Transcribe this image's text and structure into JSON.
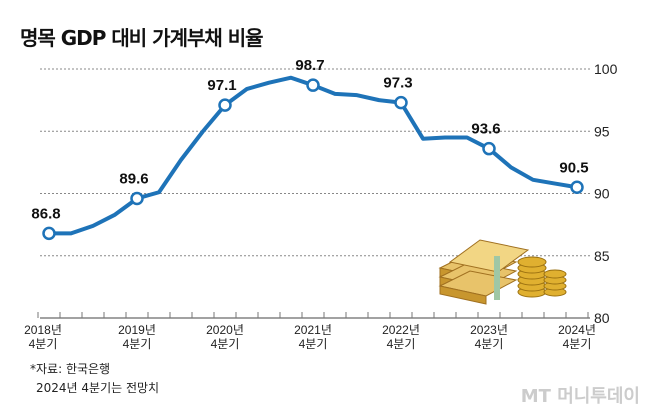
{
  "chart_data": {
    "type": "line",
    "title": "명목 GDP 대비 가계부채 비율",
    "xlabel": "",
    "ylabel": "",
    "ylim": [
      80,
      100
    ],
    "yticks": [
      80,
      85,
      90,
      95,
      100
    ],
    "grid": true,
    "x_tick_labels": [
      [
        "2018년",
        "4분기"
      ],
      [
        "2019년",
        "4분기"
      ],
      [
        "2020년",
        "4분기"
      ],
      [
        "2021년",
        "4분기"
      ],
      [
        "2022년",
        "4분기"
      ],
      [
        "2023년",
        "4분기"
      ],
      [
        "2024년",
        "4분기"
      ]
    ],
    "series": [
      {
        "name": "가계부채 비율",
        "color": "#1e73b8",
        "values": [
          86.8,
          86.8,
          87.4,
          88.3,
          89.6,
          90.1,
          92.7,
          95.0,
          97.1,
          98.4,
          98.9,
          99.3,
          98.7,
          98.0,
          97.9,
          97.5,
          97.3,
          94.4,
          94.5,
          94.5,
          93.6,
          92.1,
          91.1,
          90.8,
          90.5
        ],
        "labeled_points": [
          {
            "index": 0,
            "label": "86.8"
          },
          {
            "index": 4,
            "label": "89.6"
          },
          {
            "index": 8,
            "label": "97.1"
          },
          {
            "index": 12,
            "label": "98.7"
          },
          {
            "index": 16,
            "label": "97.3"
          },
          {
            "index": 20,
            "label": "93.6"
          },
          {
            "index": 24,
            "label": "90.5"
          }
        ]
      }
    ]
  },
  "notes": {
    "source": "*자료: 한국은행",
    "forecast": "2024년 4분기는 전망치"
  },
  "watermark": "MT 머니투데이"
}
